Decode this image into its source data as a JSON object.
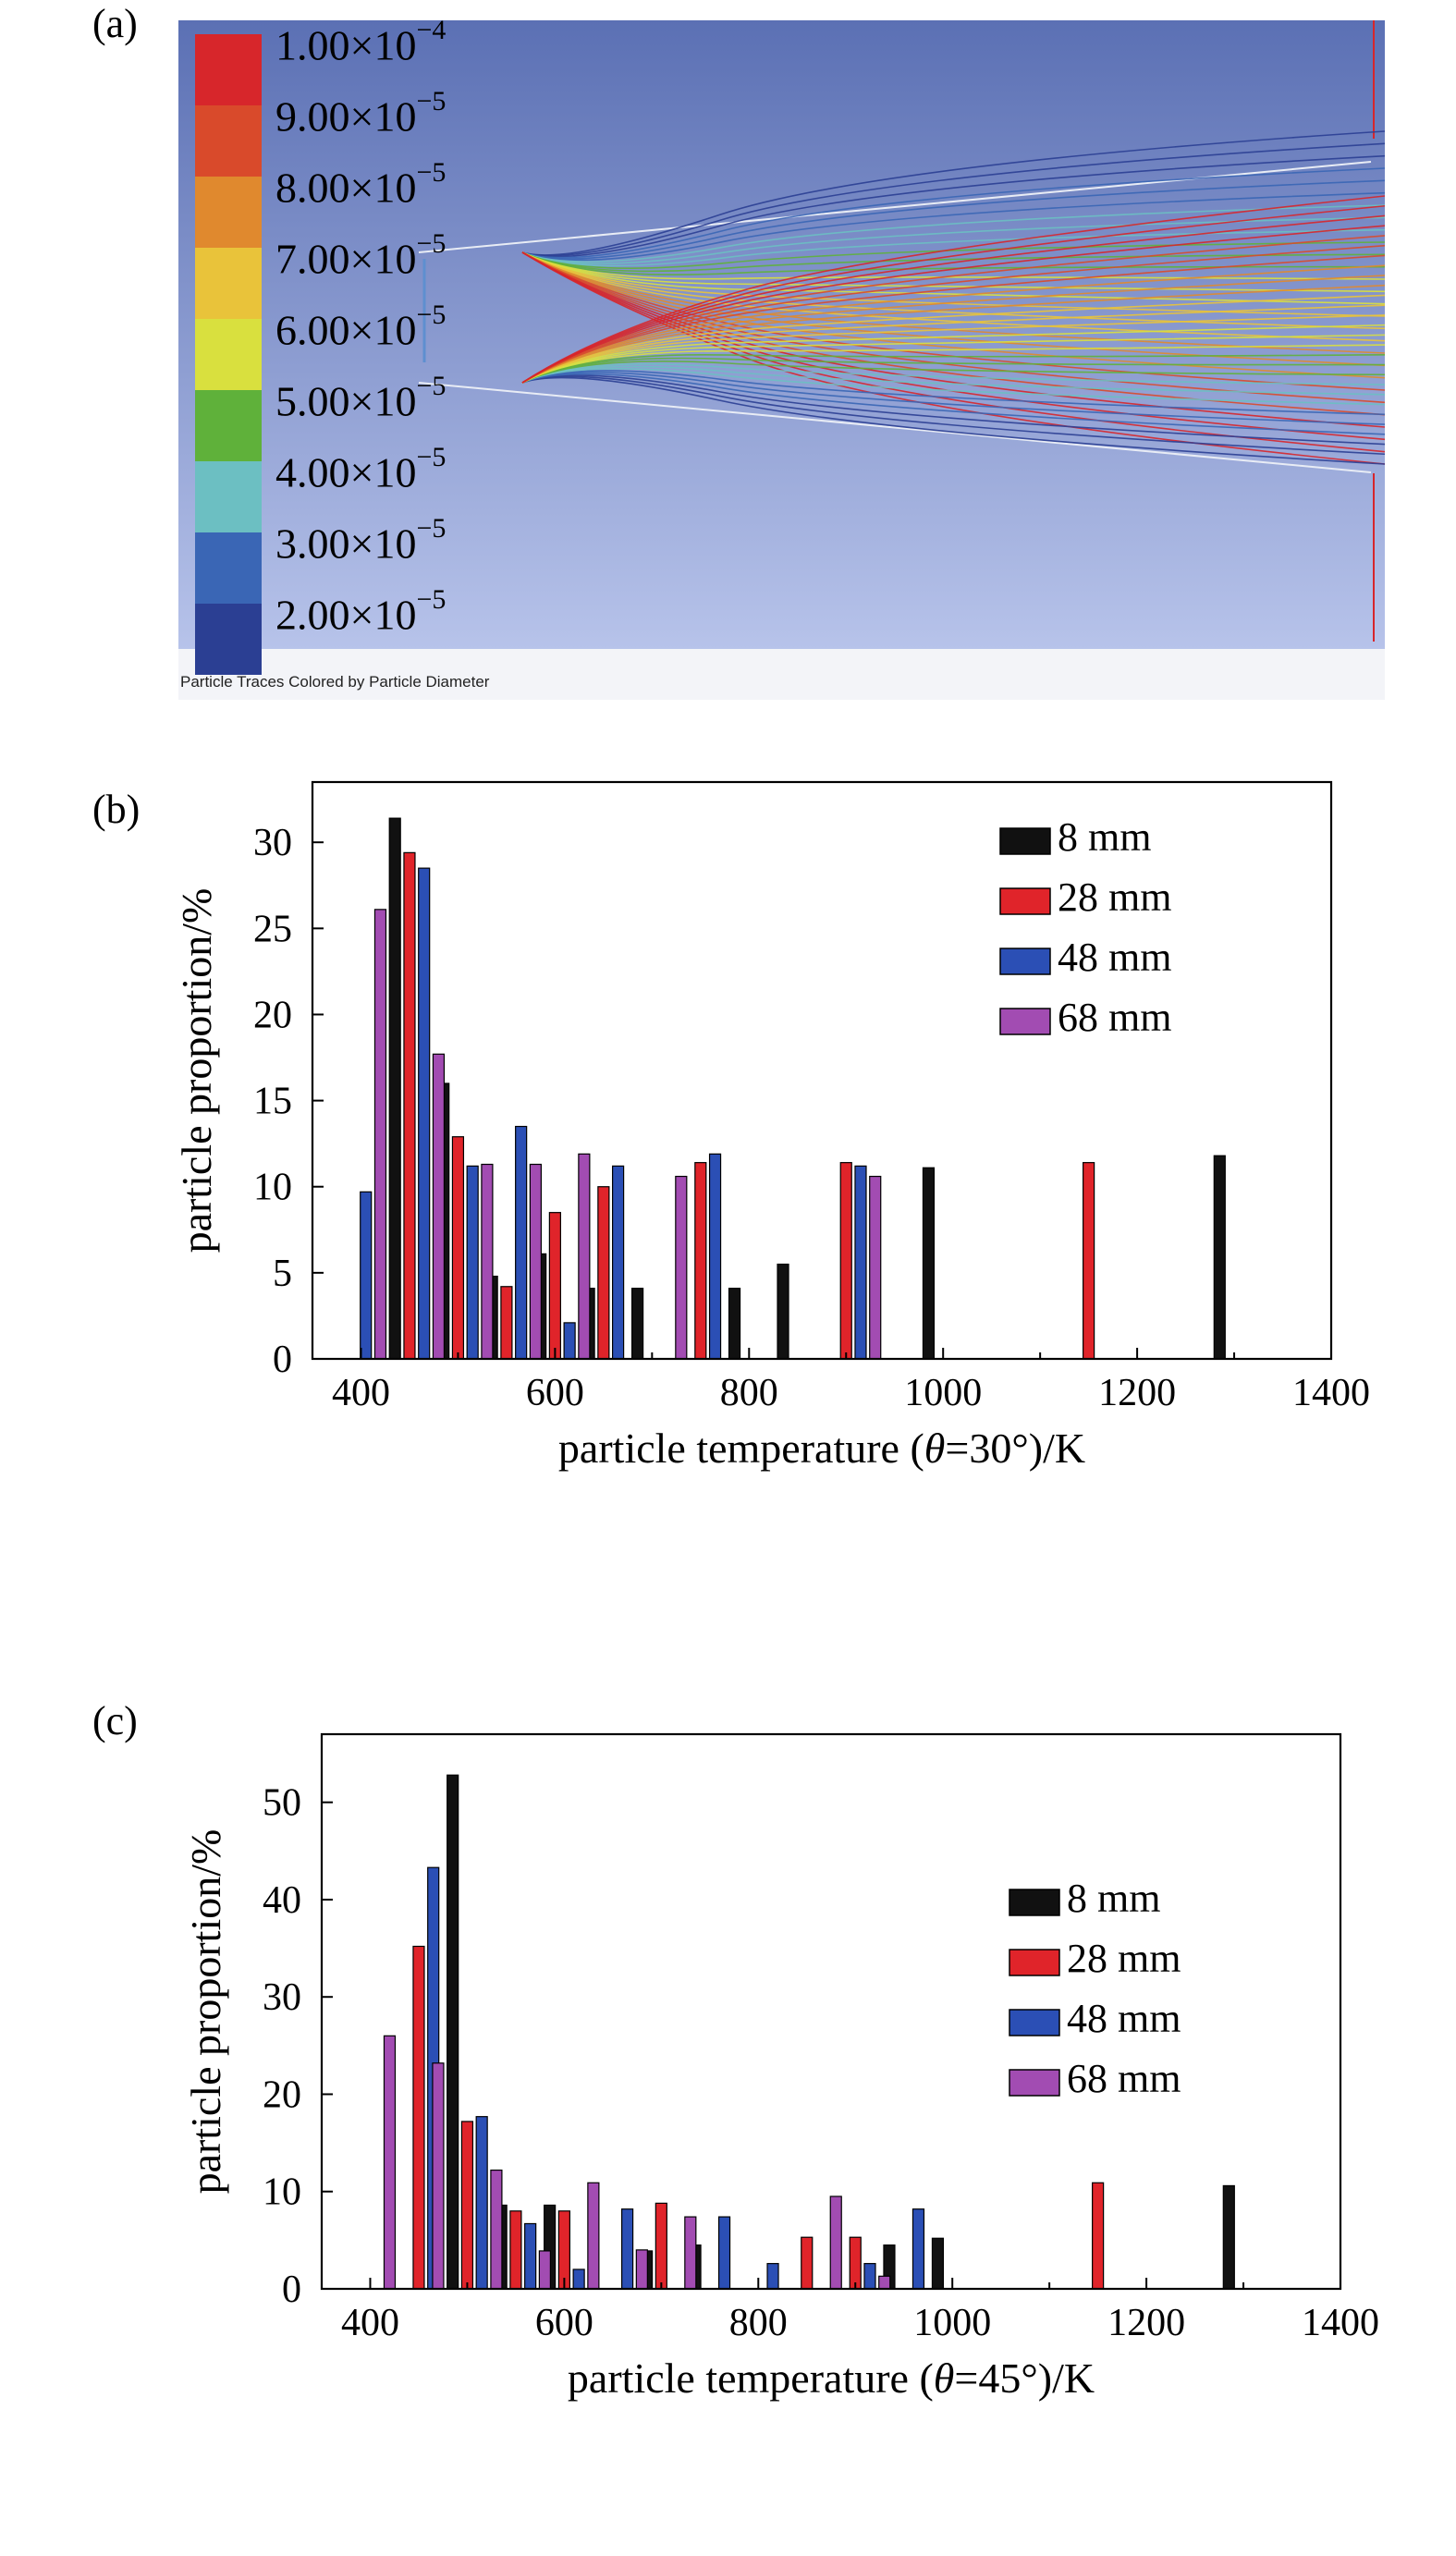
{
  "panel_a": {
    "letter": "(a)",
    "legend_title": "Particle Traces Colored by Particle Diameter",
    "colorbar": [
      {
        "mantissa": "1.00×10",
        "exponent": "−4",
        "color": "#d7262b"
      },
      {
        "mantissa": "9.00×10",
        "exponent": "−5",
        "color": "#d94a2b"
      },
      {
        "mantissa": "8.00×10",
        "exponent": "−5",
        "color": "#e0892e"
      },
      {
        "mantissa": "7.00×10",
        "exponent": "−5",
        "color": "#e9c33a"
      },
      {
        "mantissa": "6.00×10",
        "exponent": "−5",
        "color": "#d9e03e"
      },
      {
        "mantissa": "5.00×10",
        "exponent": "−5",
        "color": "#5fb13a"
      },
      {
        "mantissa": "4.00×10",
        "exponent": "−5",
        "color": "#6cbfc2"
      },
      {
        "mantissa": "3.00×10",
        "exponent": "−5",
        "color": "#3a66b5"
      },
      {
        "mantissa": "2.00×10",
        "exponent": "−5",
        "color": "#2b3f93"
      }
    ],
    "colors": {
      "background_top": "#5b70b4",
      "background_bottom": "#b7c3ea"
    }
  },
  "chart_data": [
    {
      "panel": "(b)",
      "type": "bar",
      "xlabel_pre": "particle temperature (",
      "xlabel_theta": "θ",
      "xlabel_post": "=30°)/K",
      "ylabel": "particle proportion/%",
      "xlim": [
        350,
        1400
      ],
      "ylim": [
        0,
        33.5
      ],
      "xticks": [
        400,
        600,
        800,
        1000,
        1200,
        1400
      ],
      "yticks": [
        0,
        5,
        10,
        15,
        20,
        25,
        30
      ],
      "legend_position": "top-right",
      "series": [
        {
          "name": "8 mm",
          "color": "#111111",
          "points": [
            [
              435,
              31.4
            ],
            [
              485,
              16.0
            ],
            [
              535,
              4.8
            ],
            [
              585,
              6.1
            ],
            [
              635,
              4.1
            ],
            [
              685,
              4.1
            ],
            [
              785,
              4.1
            ],
            [
              835,
              5.5
            ],
            [
              985,
              11.1
            ],
            [
              1285,
              11.8
            ]
          ]
        },
        {
          "name": "28 mm",
          "color": "#e0242a",
          "points": [
            [
              450,
              29.4
            ],
            [
              500,
              12.9
            ],
            [
              550,
              4.2
            ],
            [
              600,
              8.5
            ],
            [
              650,
              10.0
            ],
            [
              750,
              11.4
            ],
            [
              900,
              11.4
            ],
            [
              1150,
              11.4
            ]
          ]
        },
        {
          "name": "48 mm",
          "color": "#2b4fb5",
          "points": [
            [
              405,
              9.7
            ],
            [
              465,
              28.5
            ],
            [
              515,
              11.2
            ],
            [
              565,
              13.5
            ],
            [
              615,
              2.1
            ],
            [
              665,
              11.2
            ],
            [
              765,
              11.9
            ],
            [
              915,
              11.2
            ]
          ]
        },
        {
          "name": "68 mm",
          "color": "#a24cb2",
          "points": [
            [
              420,
              26.1
            ],
            [
              480,
              17.7
            ],
            [
              530,
              11.3
            ],
            [
              580,
              11.3
            ],
            [
              630,
              11.9
            ],
            [
              730,
              10.6
            ],
            [
              930,
              10.6
            ]
          ]
        }
      ]
    },
    {
      "panel": "(c)",
      "type": "bar",
      "xlabel_pre": "particle temperature (",
      "xlabel_theta": "θ",
      "xlabel_post": "=45°)/K",
      "ylabel": "particle proportion/%",
      "xlim": [
        350,
        1400
      ],
      "ylim": [
        0,
        57
      ],
      "xticks": [
        400,
        600,
        800,
        1000,
        1200,
        1400
      ],
      "yticks": [
        0,
        10,
        20,
        30,
        40,
        50
      ],
      "legend_position": "right",
      "series": [
        {
          "name": "8 mm",
          "color": "#111111",
          "points": [
            [
              485,
              52.8
            ],
            [
              535,
              8.6
            ],
            [
              585,
              8.6
            ],
            [
              685,
              3.9
            ],
            [
              735,
              4.5
            ],
            [
              935,
              4.5
            ],
            [
              985,
              5.2
            ],
            [
              1285,
              10.6
            ]
          ]
        },
        {
          "name": "28 mm",
          "color": "#e0242a",
          "points": [
            [
              450,
              35.2
            ],
            [
              500,
              17.2
            ],
            [
              550,
              8.0
            ],
            [
              600,
              8.0
            ],
            [
              700,
              8.8
            ],
            [
              850,
              5.3
            ],
            [
              900,
              5.3
            ],
            [
              1150,
              10.9
            ]
          ]
        },
        {
          "name": "48 mm",
          "color": "#2b4fb5",
          "points": [
            [
              465,
              43.3
            ],
            [
              515,
              17.7
            ],
            [
              565,
              6.7
            ],
            [
              615,
              2.0
            ],
            [
              665,
              8.2
            ],
            [
              765,
              7.4
            ],
            [
              815,
              2.6
            ],
            [
              915,
              2.6
            ],
            [
              965,
              8.2
            ]
          ]
        },
        {
          "name": "68 mm",
          "color": "#a24cb2",
          "points": [
            [
              420,
              26.0
            ],
            [
              470,
              23.2
            ],
            [
              530,
              12.2
            ],
            [
              580,
              3.9
            ],
            [
              630,
              10.9
            ],
            [
              680,
              4.0
            ],
            [
              730,
              7.4
            ],
            [
              880,
              9.5
            ],
            [
              930,
              1.3
            ]
          ]
        }
      ]
    }
  ]
}
